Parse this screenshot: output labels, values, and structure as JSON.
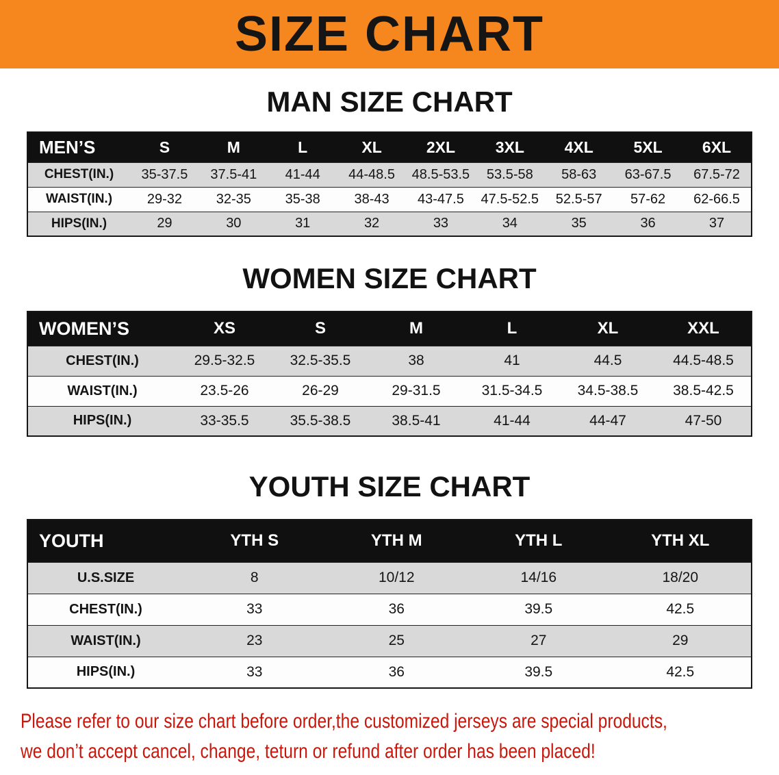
{
  "banner": {
    "title": "SIZE CHART"
  },
  "sections": [
    {
      "heading": "MAN SIZE CHART",
      "table": {
        "header": [
          "MEN’S",
          "S",
          "M",
          "L",
          "XL",
          "2XL",
          "3XL",
          "4XL",
          "5XL",
          "6XL"
        ],
        "rows": [
          [
            "CHEST(IN.)",
            "35-37.5",
            "37.5-41",
            "41-44",
            "44-48.5",
            "48.5-53.5",
            "53.5-58",
            "58-63",
            "63-67.5",
            "67.5-72"
          ],
          [
            "WAIST(IN.)",
            "29-32",
            "32-35",
            "35-38",
            "38-43",
            "43-47.5",
            "47.5-52.5",
            "52.5-57",
            "57-62",
            "62-66.5"
          ],
          [
            "HIPS(IN.)",
            "29",
            "30",
            "31",
            "32",
            "33",
            "34",
            "35",
            "36",
            "37"
          ]
        ]
      }
    },
    {
      "heading": "WOMEN SIZE CHART",
      "table": {
        "header": [
          "WOMEN’S",
          "XS",
          "S",
          "M",
          "L",
          "XL",
          "XXL"
        ],
        "rows": [
          [
            "CHEST(IN.)",
            "29.5-32.5",
            "32.5-35.5",
            "38",
            "41",
            "44.5",
            "44.5-48.5"
          ],
          [
            "WAIST(IN.)",
            "23.5-26",
            "26-29",
            "29-31.5",
            "31.5-34.5",
            "34.5-38.5",
            "38.5-42.5"
          ],
          [
            "HIPS(IN.)",
            "33-35.5",
            "35.5-38.5",
            "38.5-41",
            "41-44",
            "44-47",
            "47-50"
          ]
        ]
      }
    },
    {
      "heading": "YOUTH SIZE CHART",
      "table": {
        "header": [
          "YOUTH",
          "YTH S",
          "YTH M",
          "YTH L",
          "YTH XL"
        ],
        "rows": [
          [
            "U.S.SIZE",
            "8",
            "10/12",
            "14/16",
            "18/20"
          ],
          [
            "CHEST(IN.)",
            "33",
            "36",
            "39.5",
            "42.5"
          ],
          [
            "WAIST(IN.)",
            "23",
            "25",
            "27",
            "29"
          ],
          [
            "HIPS(IN.)",
            "33",
            "36",
            "39.5",
            "42.5"
          ]
        ]
      }
    }
  ],
  "notice": {
    "line1": "Please refer to our size chart before order,the customized jerseys are special products,",
    "line2": "we don’t accept cancel, change, teturn or refund after order has been placed!"
  },
  "colors": {
    "banner_bg": "#f6871f",
    "table_header_bg": "#101010",
    "table_header_text": "#ffffff",
    "row_gray": "#d9d9d9",
    "row_white": "#fdfdfd",
    "notice_red": "#c9170c",
    "text_black": "#121212"
  }
}
